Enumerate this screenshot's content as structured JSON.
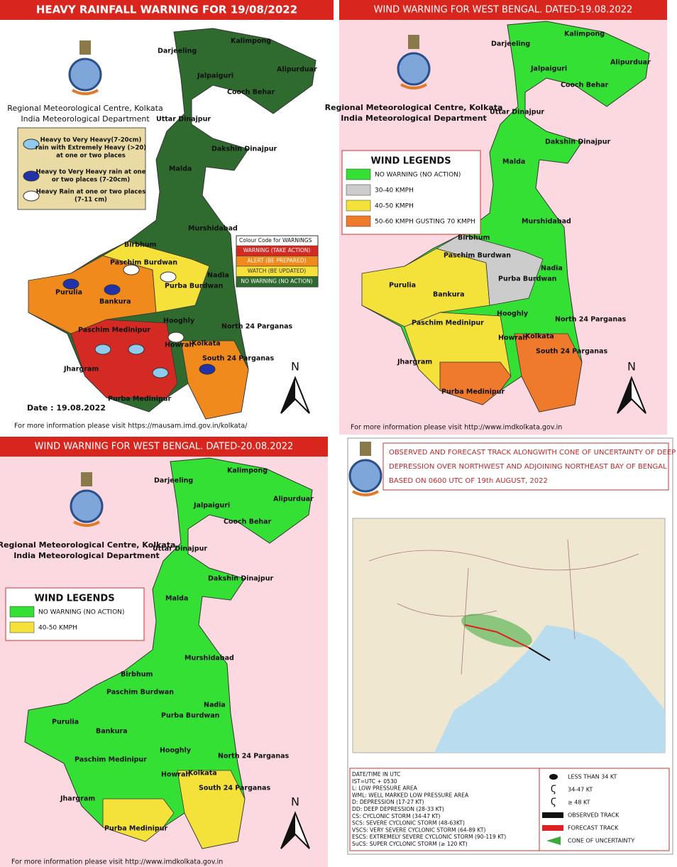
{
  "rainfall": {
    "title": "HEAVY RAINFALL WARNING FOR 19/08/2022",
    "office": [
      "Regional Meteorological Centre, Kolkata",
      "India Meteorological Department"
    ],
    "rain_legend": [
      [
        "Heavy to Very Heavy(7-20cm)",
        "rain with Extremely Heavy (>20)",
        "at one or two places"
      ],
      [
        "Heavy to Very Heavy rain at one",
        "or two places (7-20cm)"
      ],
      [
        "Heavy Rain at one or two places",
        "(7-11 cm)"
      ]
    ],
    "colour_code": {
      "title": "Colour Code for WARNINGS",
      "items": [
        {
          "label": "WARNING (TAKE ACTION)",
          "color": "#d42a24"
        },
        {
          "label": "ALERT (BE PREPARED)",
          "color": "#f08a1c"
        },
        {
          "label": "WATCH (BE UPDATED)",
          "color": "#f5e13a"
        },
        {
          "label": "NO WARNING (NO ACTION)",
          "color": "#2f6a2f"
        }
      ]
    },
    "districts": [
      "Darjeeling",
      "Kalimpong",
      "Jalpaiguri",
      "Alipurduar",
      "Cooch Behar",
      "Uttar Dinajpur",
      "Dakshin Dinajpur",
      "Malda",
      "Murshidabad",
      "Birbhum",
      "Paschim Burdwan",
      "Nadia",
      "Purulia",
      "Bankura",
      "Purba Burdwan",
      "Hooghly",
      "North 24 Parganas",
      "Paschim Medinipur",
      "Howrah",
      "Kolkata",
      "South 24 Parganas",
      "Jhargram",
      "Purba Medinipur"
    ],
    "date": "Date : 19.08.2022",
    "north": "N",
    "footer": "For more information please visit https://mausam.imd.gov.in/kolkata/"
  },
  "wind19": {
    "title": "WIND WARNING FOR WEST BENGAL. DATED-19.08.2022",
    "office": [
      "Regional Meteorological Centre, Kolkata",
      "India Meteorological Department"
    ],
    "legend": {
      "title": "WIND LEGENDS",
      "items": [
        {
          "label": "NO WARNING (NO ACTION)",
          "color": "#35e035"
        },
        {
          "label": "30-40 KMPH",
          "color": "#cccccc"
        },
        {
          "label": "40-50 KMPH",
          "color": "#f4e23a"
        },
        {
          "label": "50-60 KMPH GUSTING 70 KMPH",
          "color": "#f07a2c"
        }
      ]
    },
    "districts": [
      "Darjeeling",
      "Kalimpong",
      "Jalpaiguri",
      "Alipurduar",
      "Cooch Behar",
      "Uttar Dinajpur",
      "Dakshin Dinajpur",
      "Malda",
      "Murshidabad",
      "Birbhum",
      "Paschim Burdwan",
      "Nadia",
      "Purulia",
      "Bankura",
      "Purba Burdwan",
      "Hooghly",
      "North 24 Parganas",
      "Paschim Medinipur",
      "Howrah",
      "Kolkata",
      "South 24 Parganas",
      "Jhargram",
      "Purba Medinipur"
    ],
    "north": "N",
    "footer": "For more information please visit http://www.imdkolkata.gov.in"
  },
  "wind20": {
    "title": "WIND WARNING FOR WEST BENGAL. DATED-20.08.2022",
    "office": [
      "Regional Meteorological Centre, Kolkata",
      "India Meteorological Department"
    ],
    "legend": {
      "title": "WIND LEGENDS",
      "items": [
        {
          "label": "NO WARNING (NO ACTION)",
          "color": "#35e035"
        },
        {
          "label": "40-50 KMPH",
          "color": "#f4e23a"
        }
      ]
    },
    "districts": [
      "Darjeeling",
      "Kalimpong",
      "Jalpaiguri",
      "Alipurduar",
      "Cooch Behar",
      "Uttar Dinajpur",
      "Dakshin Dinajpur",
      "Malda",
      "Murshidabad",
      "Birbhum",
      "Paschim Burdwan",
      "Nadia",
      "Purulia",
      "Bankura",
      "Purba Burdwan",
      "Hooghly",
      "North 24 Parganas",
      "Paschim Medinipur",
      "Howrah",
      "Kolkata",
      "South 24 Parganas",
      "Jhargram",
      "Purba Medinipur"
    ],
    "north": "N",
    "footer": "For more information please visit http://www.imdkolkata.gov.in"
  },
  "track": {
    "title": [
      "OBSERVED AND FORECAST TRACK ALONGWITH CONE OF UNCERTAINTY OF DEEP",
      "DEPRESSION OVER NORTHWEST AND ADJOINING NORTHEAST BAY OF BENGAL",
      "BASED ON 0600 UTC OF 19th AUGUST, 2022"
    ],
    "abbreviations": [
      "DATE/TIME IN UTC",
      "IST=UTC + 0530",
      "L: LOW PRESSURE AREA",
      "WML: WELL MARKED LOW PRESSURE AREA",
      "D: DEPRESSION (17-27 KT)",
      "DD: DEEP DEPRESSION (28-33 KT)",
      "CS: CYCLONIC STORM (34-47 KT)",
      "SCS: SEVERE CYCLONIC STORM (48-63KT)",
      "VSCS: VERY SEVERE CYCLONIC STORM (64-89 KT)",
      "ESCS: EXTREMELY SEVERE CYCLONIC STORM (90-119 KT)",
      "SuCS: SUPER CYCLONIC STORM (≥ 120 KT)"
    ],
    "symbols": [
      "LESS THAN 34 KT",
      "34-47 KT",
      "≥ 48 KT",
      "OBSERVED TRACK",
      "FORECAST TRACK",
      "CONE OF UNCERTAINTY"
    ]
  }
}
